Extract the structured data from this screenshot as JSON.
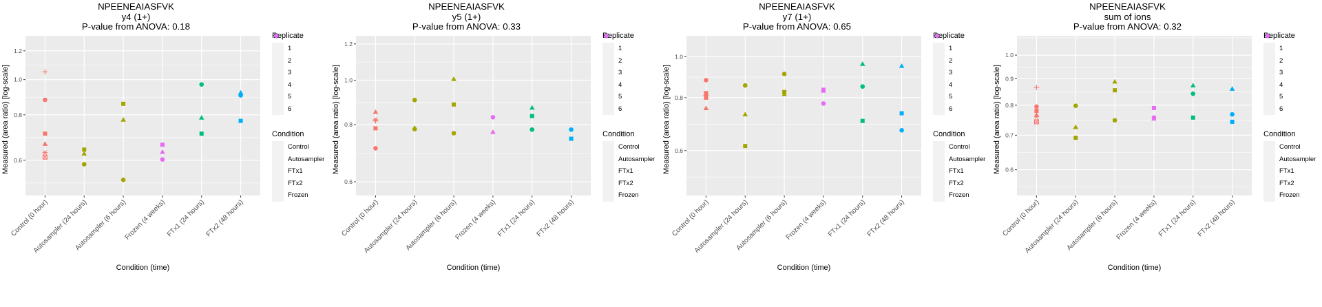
{
  "chart_data": [
    {
      "type": "scatter",
      "title": "NPEENEAIASFVK",
      "subtitle": "y4 (1+)",
      "annotation": "P-value from ANOVA: 0.18",
      "xlabel": "Condition (time)",
      "ylabel": "Measured (area ratio) [log-scale]",
      "yscale": "log",
      "ylim": [
        0.48,
        1.32
      ],
      "yticks": [
        0.6,
        0.8,
        1.0,
        1.2
      ],
      "ytick_labels": [
        "0.6",
        "0.8",
        "1.0",
        "1.2"
      ],
      "categories": [
        "Control (0 hour)",
        "Autosampler (24 hours)",
        "Autosampler (6 hours)",
        "Frozen (4 weeks)",
        "FTx1 (24 hours)",
        "FTx2 (48 hours)"
      ],
      "grid": true,
      "points": [
        {
          "x": 0,
          "y": 1.05,
          "replicate": "4",
          "condition": "Control"
        },
        {
          "x": 0,
          "y": 0.88,
          "replicate": "1",
          "condition": "Control"
        },
        {
          "x": 0,
          "y": 0.71,
          "replicate": "3",
          "condition": "Control"
        },
        {
          "x": 0,
          "y": 0.665,
          "replicate": "2",
          "condition": "Control"
        },
        {
          "x": 0,
          "y": 0.63,
          "replicate": "6",
          "condition": "Control"
        },
        {
          "x": 0,
          "y": 0.612,
          "replicate": "5",
          "condition": "Control"
        },
        {
          "x": 1,
          "y": 0.642,
          "replicate": "3",
          "condition": "Autosampler"
        },
        {
          "x": 1,
          "y": 0.625,
          "replicate": "2",
          "condition": "Autosampler"
        },
        {
          "x": 1,
          "y": 0.585,
          "replicate": "1",
          "condition": "Autosampler"
        },
        {
          "x": 2,
          "y": 0.858,
          "replicate": "3",
          "condition": "Autosampler"
        },
        {
          "x": 2,
          "y": 0.775,
          "replicate": "2",
          "condition": "Autosampler"
        },
        {
          "x": 2,
          "y": 0.53,
          "replicate": "1",
          "condition": "Autosampler"
        },
        {
          "x": 3,
          "y": 0.662,
          "replicate": "3",
          "condition": "Frozen"
        },
        {
          "x": 3,
          "y": 0.632,
          "replicate": "2",
          "condition": "Frozen"
        },
        {
          "x": 3,
          "y": 0.603,
          "replicate": "1",
          "condition": "Frozen"
        },
        {
          "x": 4,
          "y": 0.97,
          "replicate": "1",
          "condition": "FTx1"
        },
        {
          "x": 4,
          "y": 0.785,
          "replicate": "2",
          "condition": "FTx1"
        },
        {
          "x": 4,
          "y": 0.71,
          "replicate": "3",
          "condition": "FTx1"
        },
        {
          "x": 5,
          "y": 0.92,
          "replicate": "2",
          "condition": "FTx2"
        },
        {
          "x": 5,
          "y": 0.905,
          "replicate": "1",
          "condition": "FTx2"
        },
        {
          "x": 5,
          "y": 0.77,
          "replicate": "3",
          "condition": "FTx2"
        }
      ]
    },
    {
      "type": "scatter",
      "title": "NPEENEAIASFVK",
      "subtitle": "y5 (1+)",
      "annotation": "P-value from ANOVA: 0.33",
      "xlabel": "Condition (time)",
      "ylabel": "Measured (area ratio) [log-scale]",
      "yscale": "log",
      "ylim": [
        0.56,
        1.25
      ],
      "yticks": [
        0.6,
        0.8,
        1.0,
        1.2
      ],
      "ytick_labels": [
        "0.6",
        "0.8",
        "1.0",
        "1.2"
      ],
      "categories": [
        "Control (0 hour)",
        "Autosampler (24 hours)",
        "Autosampler (6 hours)",
        "Frozen (4 weeks)",
        "FTx1 (24 hours)",
        "FTx2 (48 hours)"
      ],
      "grid": true,
      "points": [
        {
          "x": 0,
          "y": 0.852,
          "replicate": "2",
          "condition": "Control"
        },
        {
          "x": 0,
          "y": 0.82,
          "replicate": "6",
          "condition": "Control"
        },
        {
          "x": 0,
          "y": 0.815,
          "replicate": "4",
          "condition": "Control"
        },
        {
          "x": 0,
          "y": 0.785,
          "replicate": "3",
          "condition": "Control"
        },
        {
          "x": 0,
          "y": 0.71,
          "replicate": "1",
          "condition": "Control"
        },
        {
          "x": 1,
          "y": 0.905,
          "replicate": "1",
          "condition": "Autosampler"
        },
        {
          "x": 1,
          "y": 0.786,
          "replicate": "2",
          "condition": "Autosampler"
        },
        {
          "x": 1,
          "y": 0.782,
          "replicate": "1",
          "condition": "Autosampler"
        },
        {
          "x": 2,
          "y": 1.005,
          "replicate": "2",
          "condition": "Autosampler"
        },
        {
          "x": 2,
          "y": 0.885,
          "replicate": "3",
          "condition": "Autosampler"
        },
        {
          "x": 2,
          "y": 0.766,
          "replicate": "1",
          "condition": "Autosampler"
        },
        {
          "x": 3,
          "y": 0.83,
          "replicate": "1",
          "condition": "Frozen"
        },
        {
          "x": 3,
          "y": 0.77,
          "replicate": "2",
          "condition": "Frozen"
        },
        {
          "x": 4,
          "y": 0.87,
          "replicate": "2",
          "condition": "FTx1"
        },
        {
          "x": 4,
          "y": 0.835,
          "replicate": "3",
          "condition": "FTx1"
        },
        {
          "x": 4,
          "y": 0.78,
          "replicate": "1",
          "condition": "FTx1"
        },
        {
          "x": 5,
          "y": 0.78,
          "replicate": "1",
          "condition": "FTx2"
        },
        {
          "x": 5,
          "y": 0.745,
          "replicate": "3",
          "condition": "FTx2"
        }
      ]
    },
    {
      "type": "scatter",
      "title": "NPEENEAIASFVK",
      "subtitle": "y7 (1+)",
      "annotation": "P-value from ANOVA: 0.65",
      "xlabel": "Condition (time)",
      "ylabel": "Measured (area ratio) [log-scale]",
      "yscale": "log",
      "ylim": [
        0.47,
        1.12
      ],
      "yticks": [
        0.6,
        0.8,
        1.0
      ],
      "ytick_labels": [
        "0.6",
        "0.8",
        "1.0"
      ],
      "categories": [
        "Control (0 hour)",
        "Autosampler (24 hours)",
        "Autosampler (6 hours)",
        "Frozen (4 weeks)",
        "FTx1 (24 hours)",
        "FTx2 (48 hours)"
      ],
      "grid": true,
      "points": [
        {
          "x": 0,
          "y": 0.88,
          "replicate": "1",
          "condition": "Control"
        },
        {
          "x": 0,
          "y": 0.82,
          "replicate": "3",
          "condition": "Control"
        },
        {
          "x": 0,
          "y": 0.81,
          "replicate": "4",
          "condition": "Control"
        },
        {
          "x": 0,
          "y": 0.8,
          "replicate": "3",
          "condition": "Control"
        },
        {
          "x": 0,
          "y": 0.755,
          "replicate": "2",
          "condition": "Control"
        },
        {
          "x": 1,
          "y": 0.855,
          "replicate": "1",
          "condition": "Autosampler"
        },
        {
          "x": 1,
          "y": 0.73,
          "replicate": "2",
          "condition": "Autosampler"
        },
        {
          "x": 1,
          "y": 0.615,
          "replicate": "3",
          "condition": "Autosampler"
        },
        {
          "x": 2,
          "y": 0.91,
          "replicate": "1",
          "condition": "Autosampler"
        },
        {
          "x": 2,
          "y": 0.825,
          "replicate": "3",
          "condition": "Autosampler"
        },
        {
          "x": 2,
          "y": 0.815,
          "replicate": "2",
          "condition": "Autosampler"
        },
        {
          "x": 3,
          "y": 0.835,
          "replicate": "3",
          "condition": "Frozen"
        },
        {
          "x": 3,
          "y": 0.83,
          "replicate": "2",
          "condition": "Frozen"
        },
        {
          "x": 3,
          "y": 0.775,
          "replicate": "1",
          "condition": "Frozen"
        },
        {
          "x": 4,
          "y": 0.96,
          "replicate": "2",
          "condition": "FTx1"
        },
        {
          "x": 4,
          "y": 0.85,
          "replicate": "1",
          "condition": "FTx1"
        },
        {
          "x": 4,
          "y": 0.705,
          "replicate": "3",
          "condition": "FTx1"
        },
        {
          "x": 5,
          "y": 0.95,
          "replicate": "2",
          "condition": "FTx2"
        },
        {
          "x": 5,
          "y": 0.735,
          "replicate": "3",
          "condition": "FTx2"
        },
        {
          "x": 5,
          "y": 0.67,
          "replicate": "1",
          "condition": "FTx2"
        }
      ]
    },
    {
      "type": "scatter",
      "title": "NPEENEAIASFVK",
      "subtitle": "sum of ions",
      "annotation": "P-value from ANOVA: 0.32",
      "xlabel": "Condition (time)",
      "ylabel": "Measured (area ratio) [log-scale]",
      "yscale": "log",
      "ylim": [
        0.535,
        1.09
      ],
      "yticks": [
        0.6,
        0.7,
        0.8,
        0.9,
        1.0
      ],
      "ytick_labels": [
        "0.6",
        "0.7",
        "0.8",
        "0.9",
        "1.0"
      ],
      "categories": [
        "Control (0 hour)",
        "Autosampler (24 hours)",
        "Autosampler (6 hours)",
        "Frozen (4 weeks)",
        "FTx1 (24 hours)",
        "FTx2 (48 hours)"
      ],
      "grid": true,
      "points": [
        {
          "x": 0,
          "y": 0.866,
          "replicate": "4",
          "condition": "Control"
        },
        {
          "x": 0,
          "y": 0.795,
          "replicate": "1",
          "condition": "Control"
        },
        {
          "x": 0,
          "y": 0.78,
          "replicate": "3",
          "condition": "Control"
        },
        {
          "x": 0,
          "y": 0.765,
          "replicate": "2",
          "condition": "Control"
        },
        {
          "x": 0,
          "y": 0.76,
          "replicate": "6",
          "condition": "Control"
        },
        {
          "x": 0,
          "y": 0.743,
          "replicate": "5",
          "condition": "Control"
        },
        {
          "x": 1,
          "y": 0.798,
          "replicate": "1",
          "condition": "Autosampler"
        },
        {
          "x": 1,
          "y": 0.725,
          "replicate": "2",
          "condition": "Autosampler"
        },
        {
          "x": 1,
          "y": 0.692,
          "replicate": "3",
          "condition": "Autosampler"
        },
        {
          "x": 2,
          "y": 0.888,
          "replicate": "2",
          "condition": "Autosampler"
        },
        {
          "x": 2,
          "y": 0.855,
          "replicate": "3",
          "condition": "Autosampler"
        },
        {
          "x": 2,
          "y": 0.748,
          "replicate": "1",
          "condition": "Autosampler"
        },
        {
          "x": 3,
          "y": 0.79,
          "replicate": "3",
          "condition": "Frozen"
        },
        {
          "x": 3,
          "y": 0.757,
          "replicate": "1",
          "condition": "Frozen"
        },
        {
          "x": 3,
          "y": 0.753,
          "replicate": "2",
          "condition": "Frozen"
        },
        {
          "x": 4,
          "y": 0.873,
          "replicate": "2",
          "condition": "FTx1"
        },
        {
          "x": 4,
          "y": 0.842,
          "replicate": "1",
          "condition": "FTx1"
        },
        {
          "x": 4,
          "y": 0.757,
          "replicate": "3",
          "condition": "FTx1"
        },
        {
          "x": 5,
          "y": 0.86,
          "replicate": "2",
          "condition": "FTx2"
        },
        {
          "x": 5,
          "y": 0.768,
          "replicate": "1",
          "condition": "FTx2"
        },
        {
          "x": 5,
          "y": 0.743,
          "replicate": "3",
          "condition": "FTx2"
        }
      ]
    }
  ],
  "legend": {
    "replicate_title": "Replicate",
    "replicates": [
      {
        "label": "1",
        "shape": "circle"
      },
      {
        "label": "2",
        "shape": "triangle"
      },
      {
        "label": "3",
        "shape": "square"
      },
      {
        "label": "4",
        "shape": "plus"
      },
      {
        "label": "5",
        "shape": "boxed-x"
      },
      {
        "label": "6",
        "shape": "asterisk"
      }
    ],
    "condition_title": "Condition",
    "conditions": [
      {
        "label": "Control",
        "color": "#F8766D"
      },
      {
        "label": "Autosampler",
        "color": "#A3A500"
      },
      {
        "label": "FTx1",
        "color": "#00BF7D"
      },
      {
        "label": "FTx2",
        "color": "#00B0F6"
      },
      {
        "label": "Frozen",
        "color": "#E76BF3"
      }
    ]
  },
  "colors": {
    "panel_bg": "#EBEBEB",
    "grid": "#FFFFFF",
    "axis_text": "#4D4D4D"
  }
}
